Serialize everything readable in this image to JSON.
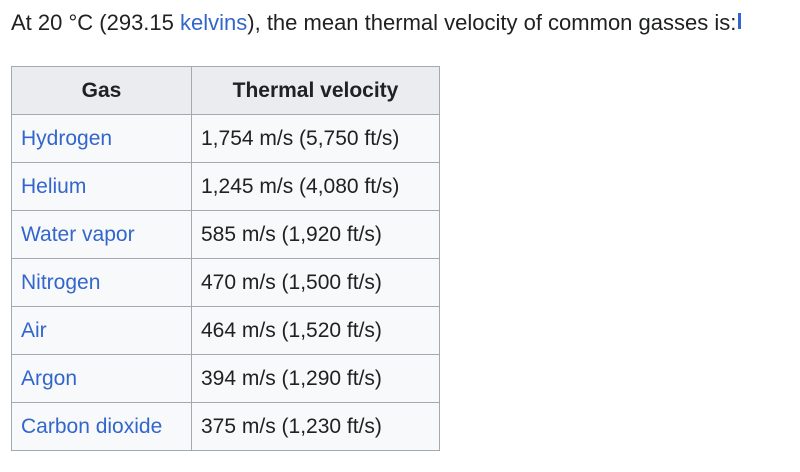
{
  "intro": {
    "prefix": "At 20 °C (293.15 ",
    "link": "kelvins",
    "suffix": "), the mean thermal velocity of common gasses is:"
  },
  "table": {
    "headers": [
      "Gas",
      "Thermal velocity"
    ],
    "rows": [
      {
        "gas": "Hydrogen",
        "velocity": "1,754 m/s (5,750 ft/s)"
      },
      {
        "gas": "Helium",
        "velocity": "1,245 m/s (4,080 ft/s)"
      },
      {
        "gas": "Water vapor",
        "velocity": "585 m/s (1,920 ft/s)"
      },
      {
        "gas": "Nitrogen",
        "velocity": "470 m/s (1,500 ft/s)"
      },
      {
        "gas": "Air",
        "velocity": "464 m/s (1,520 ft/s)"
      },
      {
        "gas": "Argon",
        "velocity": "394 m/s (1,290 ft/s)"
      },
      {
        "gas": "Carbon dioxide",
        "velocity": "375 m/s (1,230 ft/s)"
      }
    ]
  },
  "colors": {
    "link": "#3366cc",
    "text": "#202122",
    "header_bg": "#eaecf0",
    "cell_bg": "#f8f9fa",
    "border": "#a2a9b1"
  }
}
